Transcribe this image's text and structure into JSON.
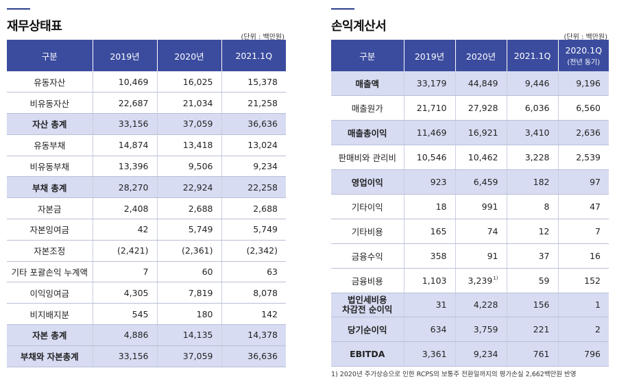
{
  "balance_sheet": {
    "title": "재무상태표",
    "unit": "(단위 : 백만원)",
    "headers": [
      "구분",
      "2019년",
      "2020년",
      "2021.1Q"
    ],
    "rows": [
      {
        "label": "유동자산",
        "values": [
          "10,469",
          "16,025",
          "15,378"
        ],
        "highlight": false
      },
      {
        "label": "비유동자산",
        "values": [
          "22,687",
          "21,034",
          "21,258"
        ],
        "highlight": false
      },
      {
        "label": "자산 총계",
        "values": [
          "33,156",
          "37,059",
          "36,636"
        ],
        "highlight": true
      },
      {
        "label": "유동부채",
        "values": [
          "14,874",
          "13,418",
          "13,024"
        ],
        "highlight": false
      },
      {
        "label": "비유동부채",
        "values": [
          "13,396",
          "9,506",
          "9,234"
        ],
        "highlight": false
      },
      {
        "label": "부채 총계",
        "values": [
          "28,270",
          "22,924",
          "22,258"
        ],
        "highlight": true
      },
      {
        "label": "자본금",
        "values": [
          "2,408",
          "2,688",
          "2,688"
        ],
        "highlight": false
      },
      {
        "label": "자본잉여금",
        "values": [
          "42",
          "5,749",
          "5,749"
        ],
        "highlight": false
      },
      {
        "label": "자본조정",
        "values": [
          "(2,421)",
          "(2,361)",
          "(2,342)"
        ],
        "highlight": false
      },
      {
        "label": "기타 포괄손익 누계액",
        "values": [
          "7",
          "60",
          "63"
        ],
        "highlight": false
      },
      {
        "label": "이익잉여금",
        "values": [
          "4,305",
          "7,819",
          "8,078"
        ],
        "highlight": false
      },
      {
        "label": "비지배지분",
        "values": [
          "545",
          "180",
          "142"
        ],
        "highlight": false
      },
      {
        "label": "자본 총계",
        "values": [
          "4,886",
          "14,135",
          "14,378"
        ],
        "highlight": true
      },
      {
        "label": "부채와 자본총계",
        "values": [
          "33,156",
          "37,059",
          "36,636"
        ],
        "highlight": true
      }
    ]
  },
  "income_statement": {
    "title": "손익계산서",
    "unit": "(단위 : 백만원)",
    "headers": [
      "구분",
      "2019년",
      "2020년",
      "2021.1Q",
      "2020.1Q"
    ],
    "header_sub": "(전년 동기)",
    "rows": [
      {
        "label": "매출액",
        "values": [
          "33,179",
          "44,849",
          "9,446",
          "9,196"
        ],
        "highlight": true
      },
      {
        "label": "매출원가",
        "values": [
          "21,710",
          "27,928",
          "6,036",
          "6,560"
        ],
        "highlight": false
      },
      {
        "label": "매출총이익",
        "values": [
          "11,469",
          "16,921",
          "3,410",
          "2,636"
        ],
        "highlight": true
      },
      {
        "label": "판매비와 관리비",
        "values": [
          "10,546",
          "10,462",
          "3,228",
          "2,539"
        ],
        "highlight": false
      },
      {
        "label": "영업이익",
        "values": [
          "923",
          "6,459",
          "182",
          "97"
        ],
        "highlight": true
      },
      {
        "label": "기타이익",
        "values": [
          "18",
          "991",
          "8",
          "47"
        ],
        "highlight": false
      },
      {
        "label": "기타비용",
        "values": [
          "165",
          "74",
          "12",
          "7"
        ],
        "highlight": false
      },
      {
        "label": "금융수익",
        "values": [
          "358",
          "91",
          "37",
          "16"
        ],
        "highlight": false
      },
      {
        "label": "금융비용",
        "values": [
          "1,103",
          "3,239",
          "59",
          "152"
        ],
        "highlight": false,
        "footnote_mark": "1)"
      },
      {
        "label_line1": "법인세비용",
        "label_line2": "차감전 순이익",
        "values": [
          "31",
          "4,228",
          "156",
          "1"
        ],
        "highlight": true
      },
      {
        "label": "당기순이익",
        "values": [
          "634",
          "3,759",
          "221",
          "2"
        ],
        "highlight": true
      },
      {
        "label": "EBITDA",
        "values": [
          "3,361",
          "9,234",
          "761",
          "796"
        ],
        "highlight": true
      }
    ],
    "footnote": "1) 2020년 주가상승으로 인한 RCPS의 보통주 전환일까지의 평가손실 2,662백만원 반영"
  },
  "colors": {
    "header_bg": "#3b4c9e",
    "highlight_bg": "#d7dcf2",
    "accent_rule": "#2b3d8f"
  }
}
